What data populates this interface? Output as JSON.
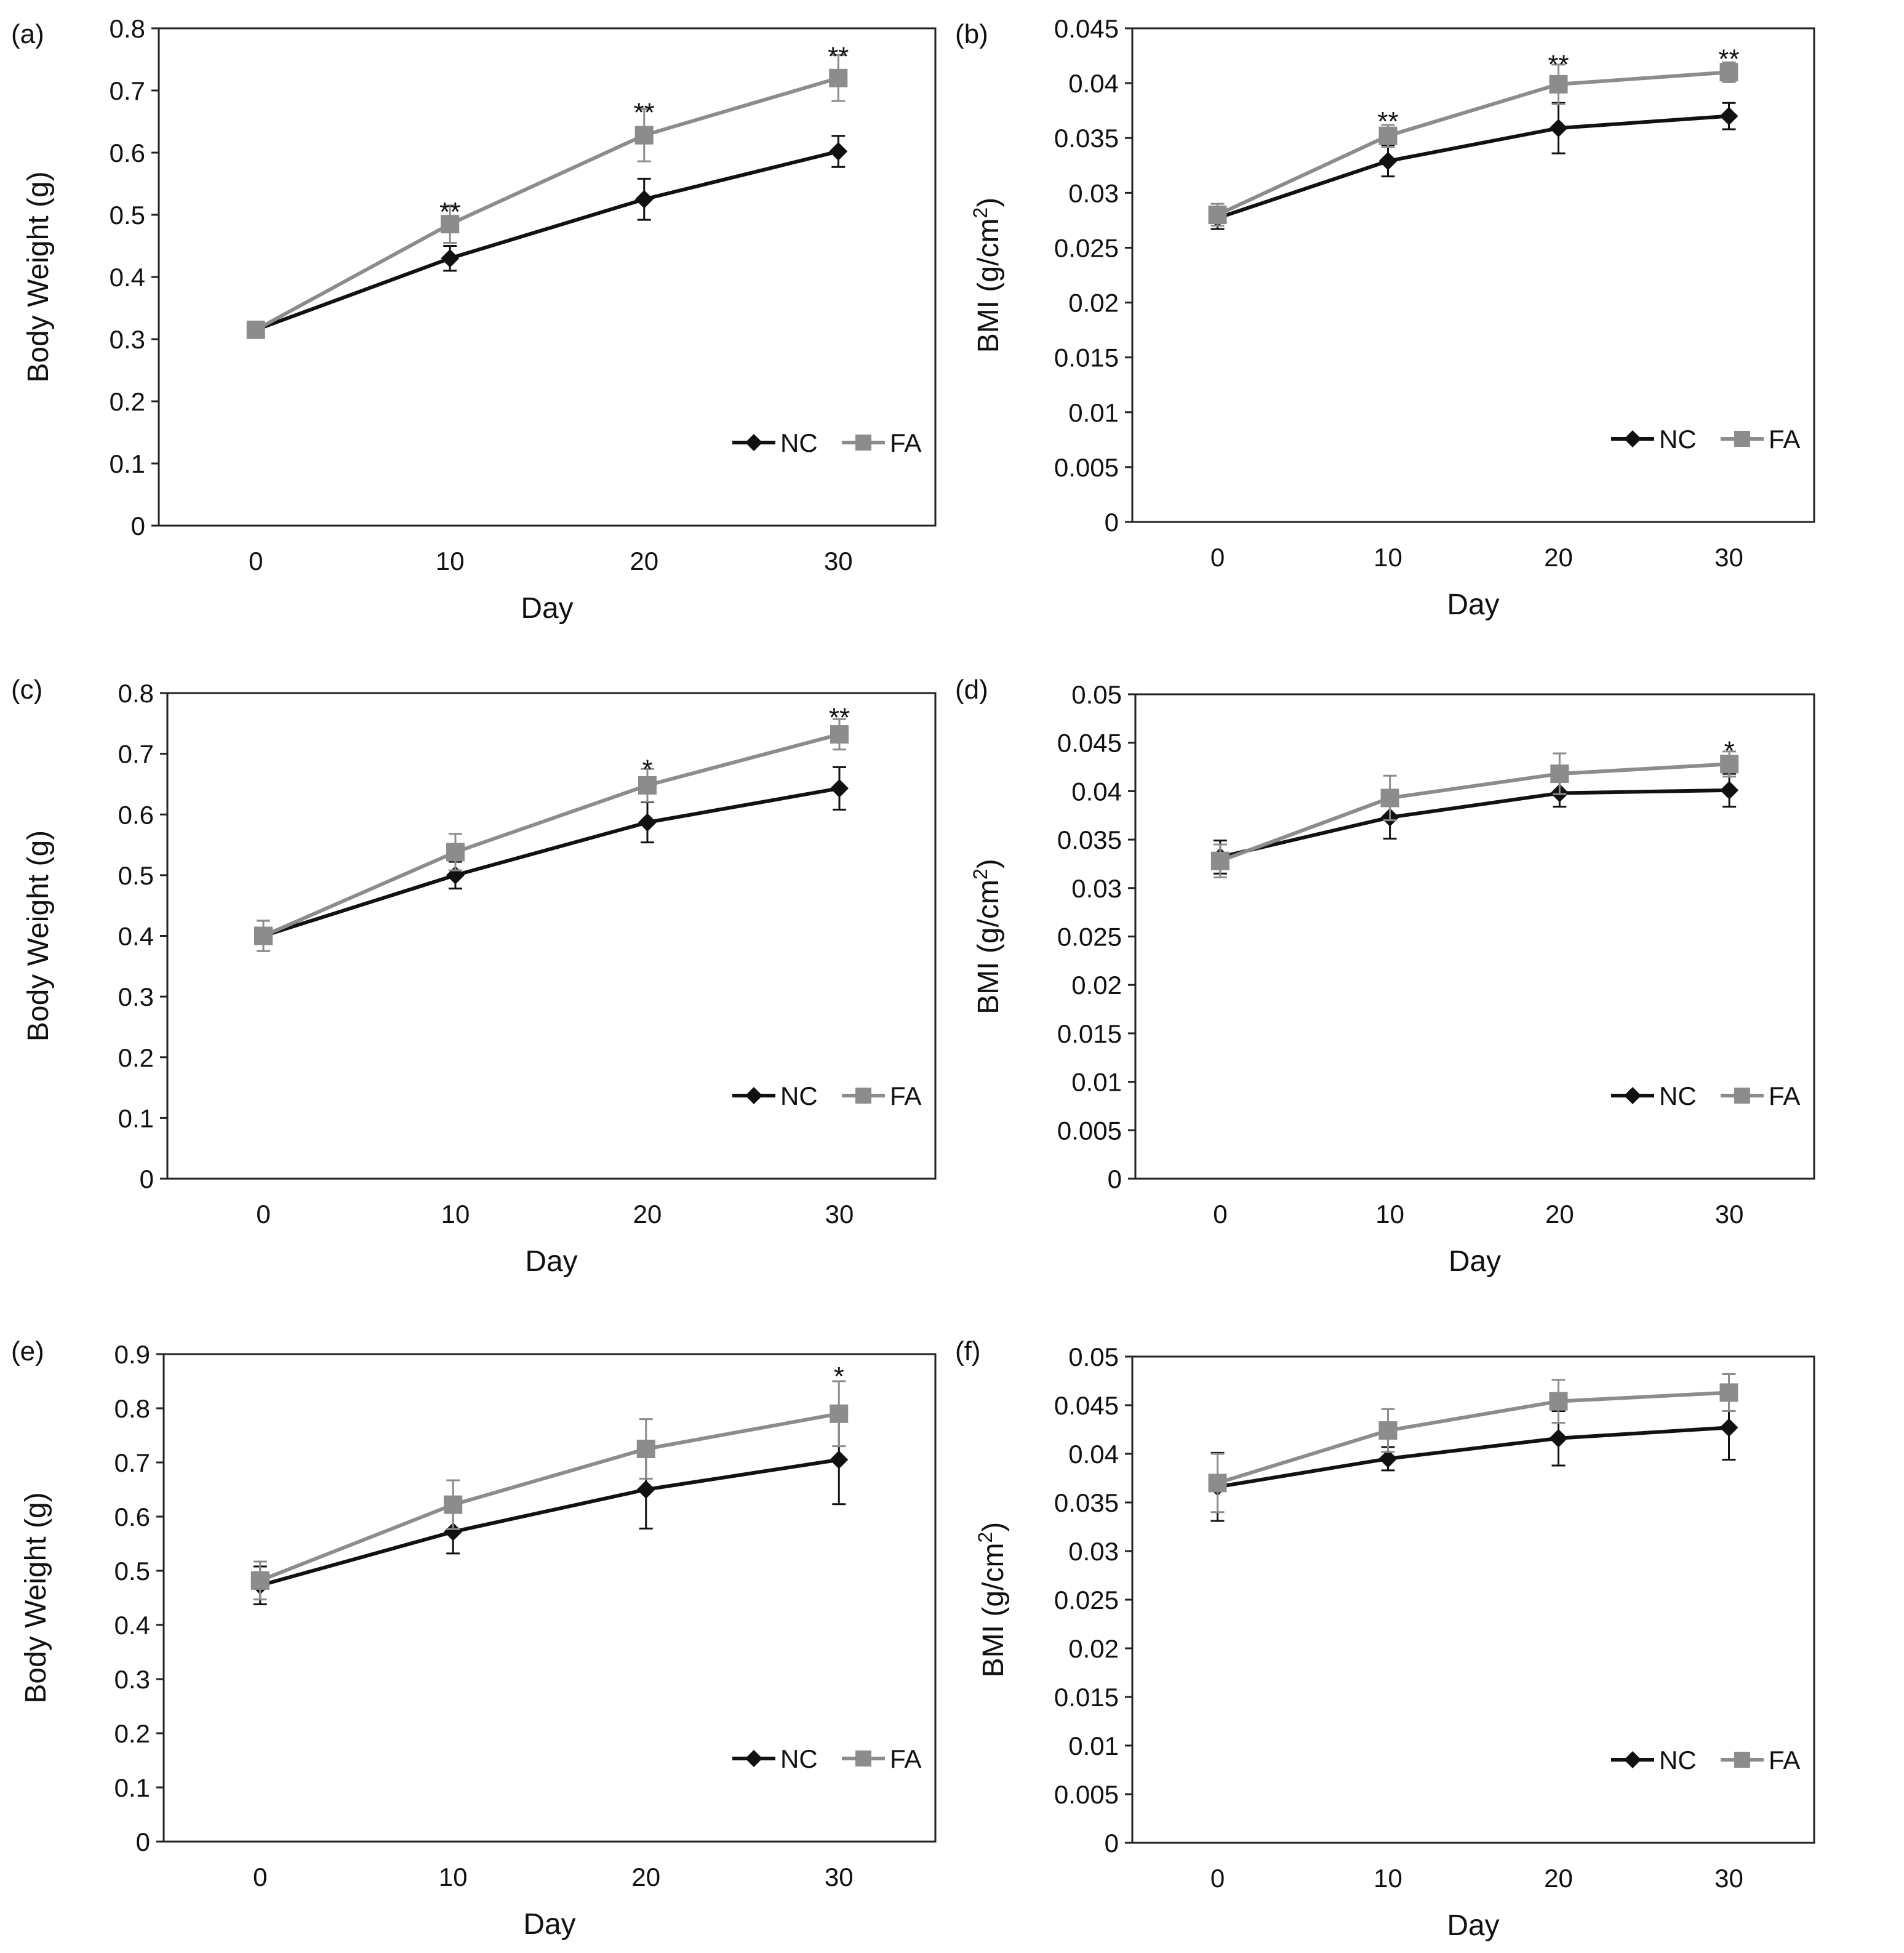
{
  "figure": {
    "series_colors": {
      "NC": "#111111",
      "FA": "#8c8c8c"
    }
  },
  "chart_data": [
    {
      "panel": "(a)",
      "type": "line",
      "xlabel": "Day",
      "ylabel": "Body Weight (g)",
      "x": [
        0,
        10,
        20,
        30
      ],
      "x_tick_labels": [
        "0",
        "10",
        "20",
        "30"
      ],
      "xlim": [
        -5,
        35
      ],
      "ylim": [
        0,
        0.8
      ],
      "y_ticks": [
        0,
        0.1,
        0.2,
        0.3,
        0.4,
        0.5,
        0.6,
        0.7,
        0.8
      ],
      "y_tick_labels": [
        "0",
        "0.1",
        "0.2",
        "0.3",
        "0.4",
        "0.5",
        "0.6",
        "0.7",
        "0.8"
      ],
      "legend": [
        "NC",
        "FA"
      ],
      "legend_position": "bottom-right",
      "series": [
        {
          "name": "NC",
          "marker": "diamond",
          "values": [
            0.315,
            0.43,
            0.525,
            0.602
          ],
          "errors": [
            0.005,
            0.02,
            0.033,
            0.025
          ]
        },
        {
          "name": "FA",
          "marker": "square",
          "values": [
            0.315,
            0.485,
            0.628,
            0.72
          ],
          "errors": [
            0.005,
            0.03,
            0.042,
            0.037
          ]
        }
      ],
      "annotations": [
        {
          "x": 10,
          "y": 0.51,
          "text": "**"
        },
        {
          "x": 20,
          "y": 0.67,
          "text": "**"
        },
        {
          "x": 30,
          "y": 0.76,
          "text": "**"
        }
      ]
    },
    {
      "panel": "(b)",
      "type": "line",
      "xlabel": "Day",
      "ylabel_main": "BMI (g/cm",
      "ylabel_sup": "2",
      "ylabel_end": ")",
      "x": [
        0,
        10,
        20,
        30
      ],
      "x_tick_labels": [
        "0",
        "10",
        "20",
        "30"
      ],
      "xlim": [
        -5,
        35
      ],
      "ylim": [
        0,
        0.045
      ],
      "y_ticks": [
        0,
        0.005,
        0.01,
        0.015,
        0.02,
        0.025,
        0.03,
        0.035,
        0.04,
        0.045
      ],
      "y_tick_labels": [
        "0",
        "0.005",
        "0.01",
        "0.015",
        "0.02",
        "0.025",
        "0.03",
        "0.035",
        "0.04",
        "0.045"
      ],
      "legend": [
        "NC",
        "FA"
      ],
      "legend_position": "bottom-right",
      "series": [
        {
          "name": "NC",
          "marker": "diamond",
          "values": [
            0.0277,
            0.0329,
            0.0359,
            0.037
          ],
          "errors": [
            0.001,
            0.0014,
            0.0023,
            0.0012
          ]
        },
        {
          "name": "FA",
          "marker": "square",
          "values": [
            0.028,
            0.0352,
            0.0399,
            0.041
          ],
          "errors": [
            0.001,
            0.001,
            0.0018,
            0.0009
          ]
        }
      ],
      "annotations": [
        {
          "x": 10,
          "y": 0.0368,
          "text": "**"
        },
        {
          "x": 20,
          "y": 0.042,
          "text": "**"
        },
        {
          "x": 30,
          "y": 0.0425,
          "text": "**"
        }
      ]
    },
    {
      "panel": "(c)",
      "type": "line",
      "xlabel": "Day",
      "ylabel": "Body Weight (g)",
      "x": [
        0,
        10,
        20,
        30
      ],
      "x_tick_labels": [
        "0",
        "10",
        "20",
        "30"
      ],
      "xlim": [
        -5,
        35
      ],
      "ylim": [
        0,
        0.8
      ],
      "y_ticks": [
        0,
        0.1,
        0.2,
        0.3,
        0.4,
        0.5,
        0.6,
        0.7,
        0.8
      ],
      "y_tick_labels": [
        "0",
        "0.1",
        "0.2",
        "0.3",
        "0.4",
        "0.5",
        "0.6",
        "0.7",
        "0.8"
      ],
      "legend": [
        "NC",
        "FA"
      ],
      "legend_position": "bottom-right",
      "series": [
        {
          "name": "NC",
          "marker": "diamond",
          "values": [
            0.4,
            0.5,
            0.587,
            0.643
          ],
          "errors": [
            0.025,
            0.022,
            0.033,
            0.035
          ]
        },
        {
          "name": "FA",
          "marker": "square",
          "values": [
            0.4,
            0.538,
            0.648,
            0.732
          ],
          "errors": [
            0.025,
            0.03,
            0.027,
            0.025
          ]
        }
      ],
      "annotations": [
        {
          "x": 20,
          "y": 0.68,
          "text": "*"
        },
        {
          "x": 30,
          "y": 0.765,
          "text": "**"
        }
      ]
    },
    {
      "panel": "(d)",
      "type": "line",
      "xlabel": "Day",
      "ylabel_main": "BMI (g/cm",
      "ylabel_sup": "2",
      "ylabel_end": ")",
      "x": [
        0,
        10,
        20,
        30
      ],
      "x_tick_labels": [
        "0",
        "10",
        "20",
        "30"
      ],
      "xlim": [
        -5,
        35
      ],
      "ylim": [
        0,
        0.05
      ],
      "y_ticks": [
        0,
        0.005,
        0.01,
        0.015,
        0.02,
        0.025,
        0.03,
        0.035,
        0.04,
        0.045,
        0.05
      ],
      "y_tick_labels": [
        "0",
        "0.005",
        "0.01",
        "0.015",
        "0.02",
        "0.025",
        "0.03",
        "0.035",
        "0.04",
        "0.045",
        "0.05"
      ],
      "legend": [
        "NC",
        "FA"
      ],
      "legend_position": "bottom-right",
      "series": [
        {
          "name": "NC",
          "marker": "diamond",
          "values": [
            0.0332,
            0.0373,
            0.0398,
            0.0401
          ],
          "errors": [
            0.0017,
            0.0022,
            0.0014,
            0.0017
          ]
        },
        {
          "name": "FA",
          "marker": "square",
          "values": [
            0.0328,
            0.0393,
            0.0418,
            0.0428
          ],
          "errors": [
            0.0017,
            0.0023,
            0.0021,
            0.0013
          ]
        }
      ],
      "annotations": [
        {
          "x": 30,
          "y": 0.0445,
          "text": "*"
        }
      ]
    },
    {
      "panel": "(e)",
      "type": "line",
      "xlabel": "Day",
      "ylabel": "Body Weight (g)",
      "x": [
        0,
        10,
        20,
        30
      ],
      "x_tick_labels": [
        "0",
        "10",
        "20",
        "30"
      ],
      "xlim": [
        -5,
        35
      ],
      "ylim": [
        0,
        0.9
      ],
      "y_ticks": [
        0,
        0.1,
        0.2,
        0.3,
        0.4,
        0.5,
        0.6,
        0.7,
        0.8,
        0.9
      ],
      "y_tick_labels": [
        "0",
        "0.1",
        "0.2",
        "0.3",
        "0.4",
        "0.5",
        "0.6",
        "0.7",
        "0.8",
        "0.9"
      ],
      "legend": [
        "NC",
        "FA"
      ],
      "legend_position": "bottom-right",
      "series": [
        {
          "name": "NC",
          "marker": "diamond",
          "values": [
            0.473,
            0.572,
            0.65,
            0.705
          ],
          "errors": [
            0.035,
            0.04,
            0.072,
            0.082
          ]
        },
        {
          "name": "FA",
          "marker": "square",
          "values": [
            0.482,
            0.622,
            0.725,
            0.79
          ],
          "errors": [
            0.035,
            0.045,
            0.055,
            0.06
          ]
        }
      ],
      "annotations": [
        {
          "x": 30,
          "y": 0.865,
          "text": "*"
        }
      ]
    },
    {
      "panel": "(f)",
      "type": "line",
      "xlabel": "Day",
      "ylabel_main": "BMI (g/cm",
      "ylabel_sup": "2",
      "ylabel_end": ")",
      "x": [
        0,
        10,
        20,
        30
      ],
      "x_tick_labels": [
        "0",
        "10",
        "20",
        "30"
      ],
      "xlim": [
        -5,
        35
      ],
      "ylim": [
        0,
        0.05
      ],
      "y_ticks": [
        0,
        0.005,
        0.01,
        0.015,
        0.02,
        0.025,
        0.03,
        0.035,
        0.04,
        0.045,
        0.05
      ],
      "y_tick_labels": [
        "0",
        "0.005",
        "0.01",
        "0.015",
        "0.02",
        "0.025",
        "0.03",
        "0.035",
        "0.04",
        "0.045",
        "0.05"
      ],
      "legend": [
        "NC",
        "FA"
      ],
      "legend_position": "bottom-right",
      "series": [
        {
          "name": "NC",
          "marker": "diamond",
          "values": [
            0.0366,
            0.0395,
            0.0416,
            0.0427
          ],
          "errors": [
            0.0035,
            0.0012,
            0.0028,
            0.0033
          ]
        },
        {
          "name": "FA",
          "marker": "square",
          "values": [
            0.037,
            0.0424,
            0.0454,
            0.0463
          ],
          "errors": [
            0.003,
            0.0022,
            0.0022,
            0.0019
          ]
        }
      ],
      "annotations": []
    }
  ]
}
